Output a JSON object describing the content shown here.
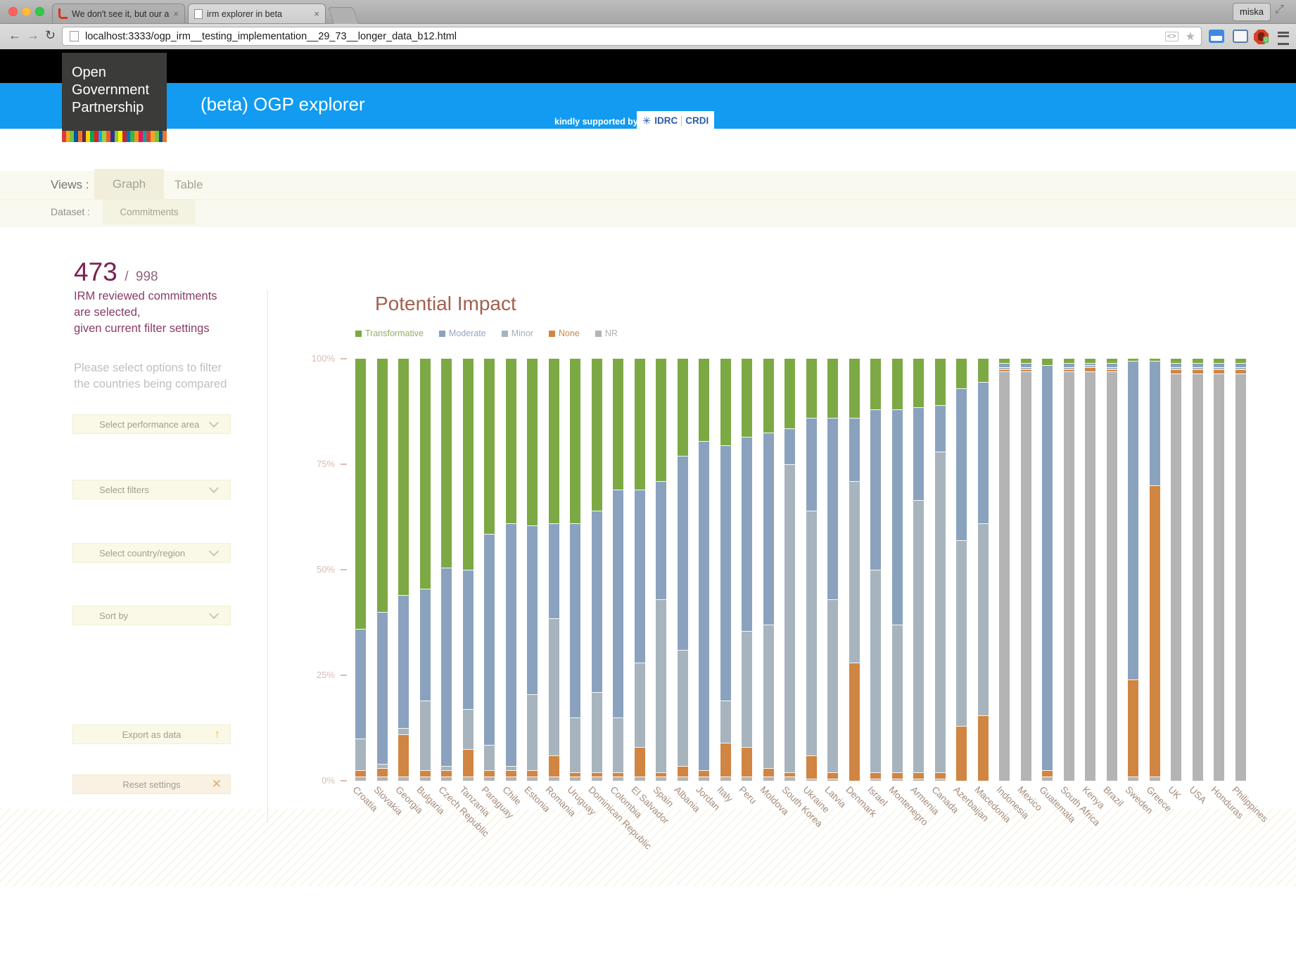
{
  "browser": {
    "tabs": [
      {
        "title": "We don't see it, but our ar",
        "active": false
      },
      {
        "title": "irm explorer in beta",
        "active": true
      }
    ],
    "user_button": "miska",
    "url": "localhost:3333/ogp_irm__testing_implementation__29_73__longer_data_b12.html",
    "adblock_badge": "0"
  },
  "header": {
    "logo_lines": [
      "Open",
      "Government",
      "Partnership"
    ],
    "app_title": "(beta) OGP explorer",
    "supported_by": "kindly supported by",
    "sponsor": {
      "flake": "✳",
      "left": "IDRC",
      "right": "CRDI"
    },
    "colors": {
      "blue_bar": "#129bf0",
      "black_bar": "#000000",
      "logo_bg": "#3b3b39"
    },
    "stripe_colors": [
      "#e03a3e",
      "#f5a623",
      "#7ac143",
      "#00539f",
      "#ef7622",
      "#5e2750",
      "#ffd200",
      "#00a651",
      "#ed1c24",
      "#00aeef",
      "#a6ce39",
      "#f15a29",
      "#2e3192",
      "#8dc63f",
      "#fff200",
      "#c1272d",
      "#0071bc",
      "#39b54a",
      "#f7931e",
      "#ed145b",
      "#00a99d",
      "#e03a3e",
      "#f5a623",
      "#7ac143",
      "#00539f",
      "#ef7622"
    ]
  },
  "views": {
    "label": "Views :",
    "tabs": [
      {
        "label": "Graph",
        "active": true
      },
      {
        "label": "Table",
        "active": false
      }
    ]
  },
  "dataset": {
    "label": "Dataset :",
    "tabs": [
      {
        "label": "Commitments",
        "active": true
      }
    ]
  },
  "sidebar": {
    "count": "473",
    "divider": "/",
    "total": "998",
    "note_lines": [
      "IRM reviewed commitments",
      "are selected,",
      "given current filter settings"
    ],
    "hint_lines": [
      "Please select options to filter",
      "the countries being compared"
    ],
    "dropdowns": [
      "Select performance area",
      "Select filters",
      "Select country/region",
      "Sort by"
    ],
    "export_label": "Export as data",
    "reset_label": "Reset settings"
  },
  "chart_data": {
    "type": "bar",
    "subtype": "stacked-percent",
    "title": "Potential Impact",
    "xlabel": "",
    "ylabel": "",
    "ylim": [
      0,
      100
    ],
    "yticks": [
      "100%",
      "75%",
      "50%",
      "25%",
      "0%"
    ],
    "grid": false,
    "legend_position": "top-left",
    "stack_order_bottom_to_top": [
      "NR",
      "None",
      "Minor",
      "Moderate",
      "Transformative"
    ],
    "legend": [
      {
        "name": "Transformative",
        "color": "#7ca944",
        "text_color": "#97ae63"
      },
      {
        "name": "Moderate",
        "color": "#8aa2be",
        "text_color": "#92a9c4"
      },
      {
        "name": "Minor",
        "color": "#a7b4be",
        "text_color": "#a3adb4"
      },
      {
        "name": "None",
        "color": "#d08542",
        "text_color": "#c98848"
      },
      {
        "name": "NR",
        "color": "#b4b4b4",
        "text_color": "#b0b0b0"
      }
    ],
    "categories": [
      "Croatia",
      "Slovakia",
      "Georgia",
      "Bulgaria",
      "Czech Republic",
      "Tanzania",
      "Paraguay",
      "Chile",
      "Estonia",
      "Romania",
      "Uruguay",
      "Dominican Republic",
      "Colombia",
      "El Salvador",
      "Spain",
      "Albania",
      "Jordan",
      "Italy",
      "Peru",
      "Moldova",
      "South Korea",
      "Ukraine",
      "Latvia",
      "Denmark",
      "Israel",
      "Montenegro",
      "Armenia",
      "Canada",
      "Azerbaijan",
      "Macedonia",
      "Indonesia",
      "Mexico",
      "Guatemala",
      "South Africa",
      "Kenya",
      "Brazil",
      "Sweden",
      "Greece",
      "UK",
      "USA",
      "Honduras",
      "Philippines"
    ],
    "series": [
      {
        "name": "Transformative",
        "values": [
          64,
          60,
          56,
          54.5,
          49.5,
          50,
          41.5,
          39,
          39.5,
          39,
          39,
          36,
          31,
          31,
          29,
          23,
          19.5,
          20.5,
          18.5,
          17.5,
          16.5,
          14,
          14,
          14,
          12,
          12,
          11.5,
          11,
          7,
          5.5,
          1,
          1,
          1.5,
          1,
          1,
          1,
          0.5,
          0.5,
          1,
          1,
          1,
          1
        ]
      },
      {
        "name": "Moderate",
        "values": [
          26,
          36,
          31.5,
          26.5,
          47,
          33,
          50,
          57.5,
          40,
          22.5,
          46,
          43,
          54,
          41,
          28,
          46,
          78,
          60.5,
          46,
          45.5,
          8.5,
          22,
          43,
          15,
          38,
          51,
          22,
          11,
          36,
          33.5,
          1,
          1,
          96,
          1,
          0.5,
          1,
          75.5,
          29.5,
          1,
          1,
          1,
          1
        ]
      },
      {
        "name": "Minor",
        "values": [
          7.5,
          1,
          1.5,
          16.5,
          1,
          9.5,
          6,
          1,
          18,
          32.5,
          13,
          19,
          13,
          20,
          41,
          27.5,
          0,
          10,
          27.5,
          34,
          73,
          58,
          41,
          43,
          48,
          35,
          64.5,
          76,
          44,
          45.5,
          0.5,
          0.5,
          0,
          0.5,
          0.5,
          0.5,
          0,
          0,
          0.5,
          0.5,
          0.5,
          0.5
        ]
      },
      {
        "name": "None",
        "values": [
          1.5,
          2,
          10,
          1.5,
          1.5,
          6.5,
          1.5,
          1.5,
          1.5,
          5,
          1,
          1,
          1,
          7,
          1,
          2.5,
          1.5,
          8,
          7,
          2,
          1,
          5.5,
          1.5,
          28,
          1.5,
          1.5,
          1.5,
          1.5,
          13,
          15.5,
          0.5,
          0.5,
          1.5,
          0.5,
          1,
          0.5,
          23,
          69,
          1,
          1,
          1,
          1
        ]
      },
      {
        "name": "NR",
        "values": [
          1,
          1,
          1,
          1,
          1,
          1,
          1,
          1,
          1,
          1,
          1,
          1,
          1,
          1,
          1,
          1,
          1,
          1,
          1,
          1,
          1,
          0.5,
          0.5,
          0,
          0.5,
          0.5,
          0.5,
          0.5,
          0,
          0,
          97,
          97,
          1,
          97,
          97,
          97,
          1,
          1,
          96.5,
          96.5,
          96.5,
          96.5
        ]
      }
    ]
  }
}
